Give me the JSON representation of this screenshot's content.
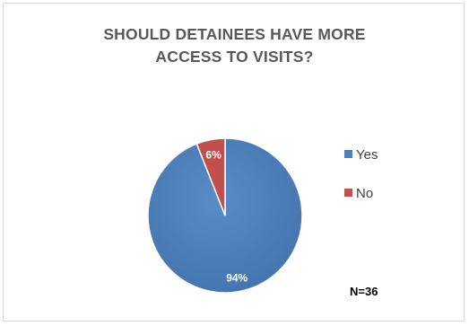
{
  "chart_data": {
    "type": "pie",
    "title": "SHOULD DETAINEES HAVE MORE ACCESS TO VISITS?",
    "title_lines": [
      "SHOULD DETAINEES HAVE MORE",
      "ACCESS TO VISITS?"
    ],
    "categories": [
      "Yes",
      "No"
    ],
    "values": [
      94,
      6
    ],
    "data_labels": [
      "94%",
      "6%"
    ],
    "colors": [
      "#4f81bd",
      "#c0504d"
    ],
    "legend_position": "right",
    "note": "N=36"
  }
}
